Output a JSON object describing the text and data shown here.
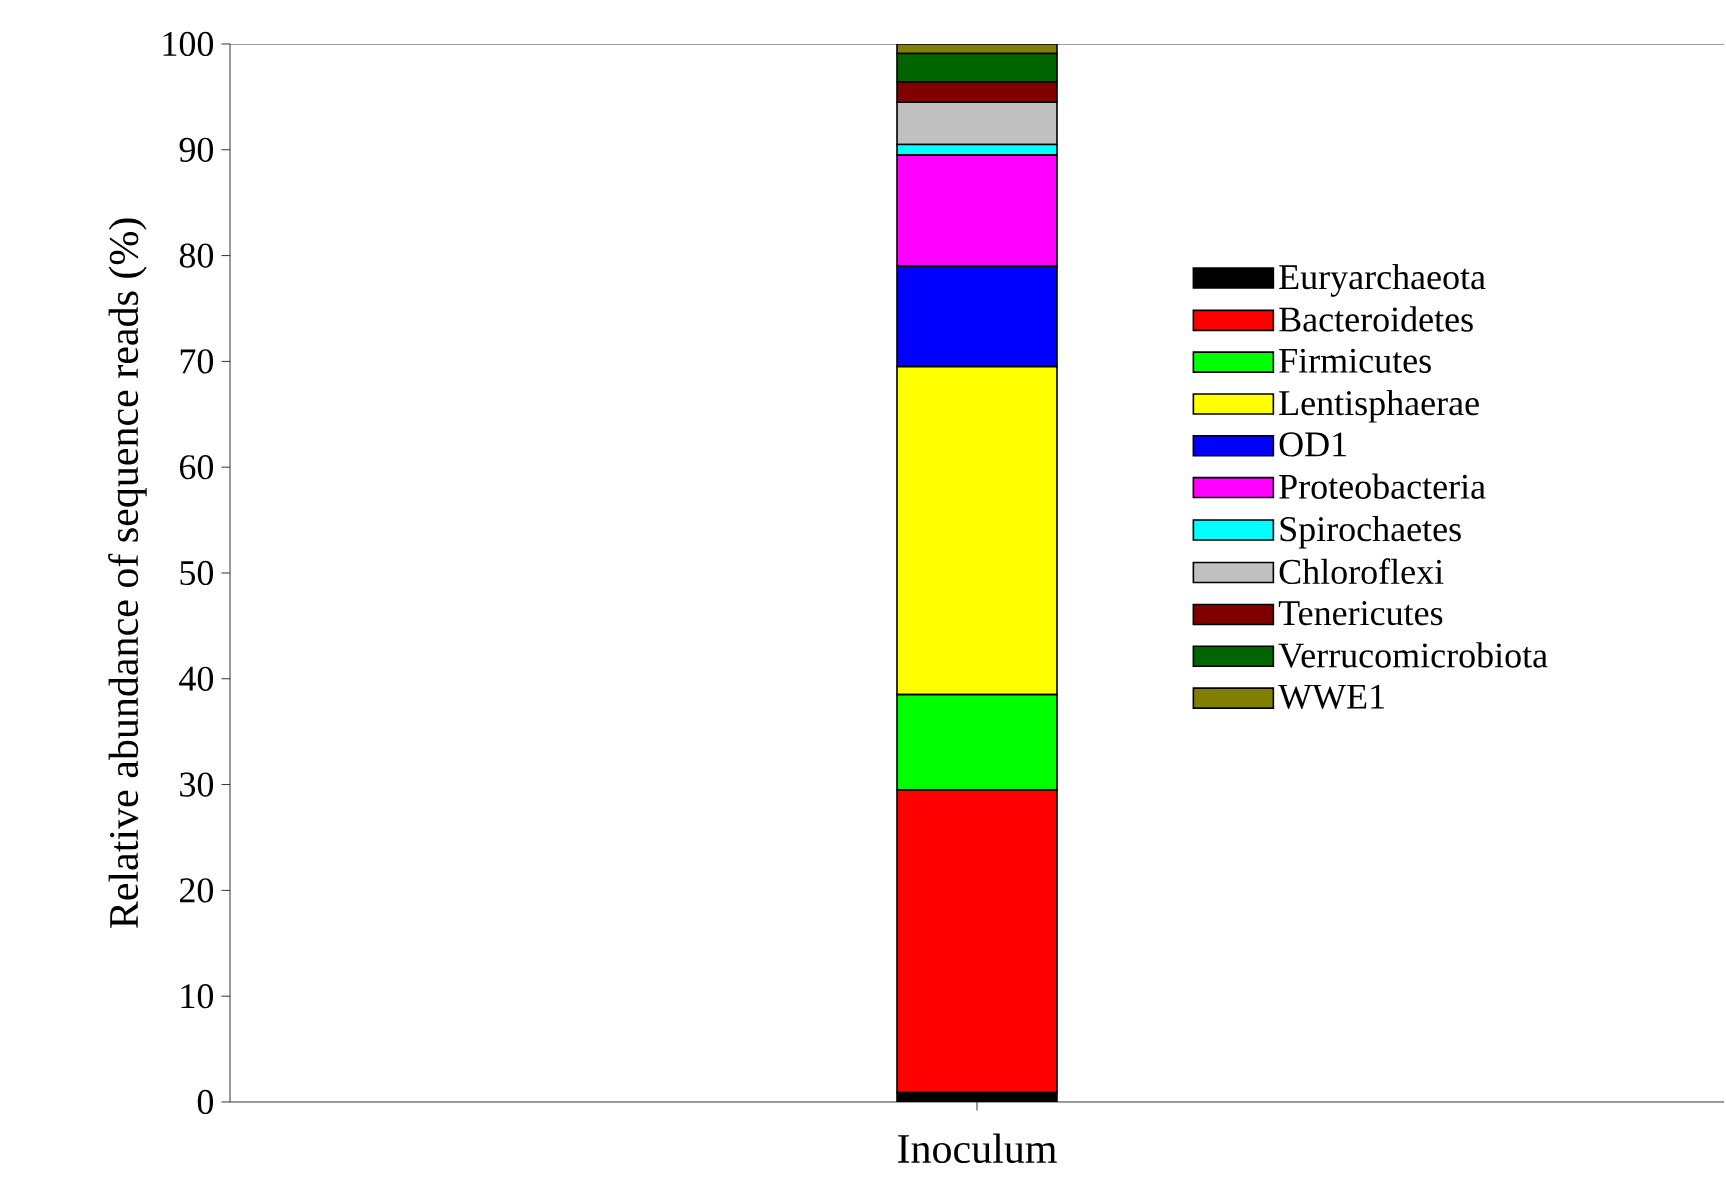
{
  "chart_data": {
    "type": "bar",
    "stacked": true,
    "categories": [
      "Inoculum"
    ],
    "ylabel": "Relative abundance of sequence reads (%)",
    "ylim": [
      0,
      100
    ],
    "yticks": [
      0,
      10,
      20,
      30,
      40,
      50,
      60,
      70,
      80,
      90,
      100
    ],
    "legend": "right",
    "grid": false,
    "series": [
      {
        "name": "Euryarchaeota",
        "color": "#000000",
        "values": [
          0.9
        ]
      },
      {
        "name": "Bacteroidetes",
        "color": "#ff0000",
        "values": [
          28.6
        ]
      },
      {
        "name": "Firmicutes",
        "color": "#00ff00",
        "values": [
          9.0
        ]
      },
      {
        "name": "Lentisphaerae",
        "color": "#ffff00",
        "values": [
          31.0
        ]
      },
      {
        "name": "OD1",
        "color": "#0000ff",
        "values": [
          9.5
        ]
      },
      {
        "name": "Proteobacteria",
        "color": "#ff00ff",
        "values": [
          10.5
        ]
      },
      {
        "name": "Spirochaetes",
        "color": "#00ffff",
        "values": [
          1.0
        ]
      },
      {
        "name": "Chloroflexi",
        "color": "#c0c0c0",
        "values": [
          4.0
        ]
      },
      {
        "name": "Tenericutes",
        "color": "#800000",
        "values": [
          1.9
        ]
      },
      {
        "name": "Verrucomicrobiota",
        "color": "#006400",
        "values": [
          2.7
        ]
      },
      {
        "name": "WWE1",
        "color": "#808000",
        "values": [
          0.9
        ]
      }
    ]
  }
}
